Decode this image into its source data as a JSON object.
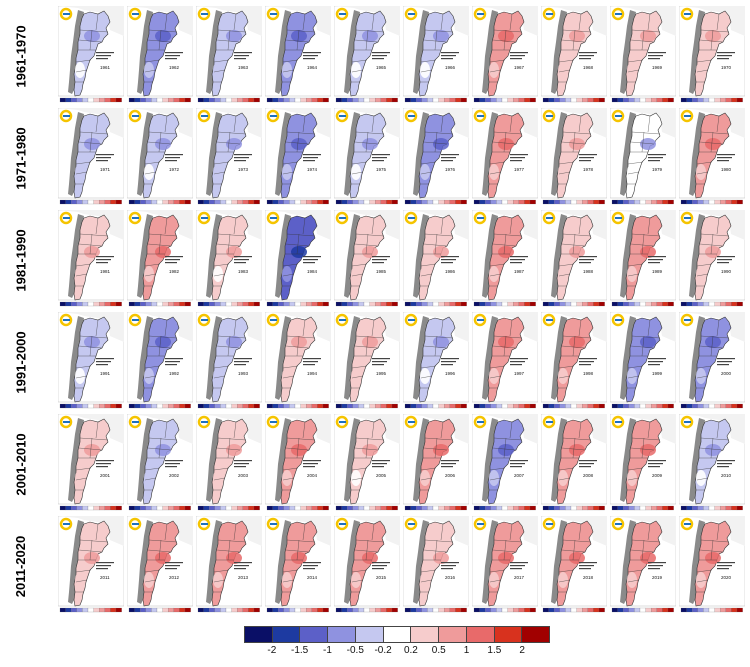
{
  "decades": [
    {
      "label": "1961-1970",
      "years": [
        {
          "year": "1961",
          "anomaly": -0.3
        },
        {
          "year": "1962",
          "anomaly": -0.6
        },
        {
          "year": "1963",
          "anomaly": -0.4
        },
        {
          "year": "1964",
          "anomaly": -0.7
        },
        {
          "year": "1965",
          "anomaly": -0.2
        },
        {
          "year": "1966",
          "anomaly": -0.3
        },
        {
          "year": "1967",
          "anomaly": 0.6
        },
        {
          "year": "1968",
          "anomaly": 0.5
        },
        {
          "year": "1969",
          "anomaly": 0.4
        },
        {
          "year": "1970",
          "anomaly": 0.5
        }
      ]
    },
    {
      "label": "1971-1980",
      "years": [
        {
          "year": "1971",
          "anomaly": -0.4
        },
        {
          "year": "1972",
          "anomaly": -0.3
        },
        {
          "year": "1973",
          "anomaly": -0.4
        },
        {
          "year": "1974",
          "anomaly": -0.5
        },
        {
          "year": "1975",
          "anomaly": -0.3
        },
        {
          "year": "1976",
          "anomaly": -0.8
        },
        {
          "year": "1977",
          "anomaly": 0.6
        },
        {
          "year": "1978",
          "anomaly": 0.5
        },
        {
          "year": "1979",
          "anomaly": -0.1
        },
        {
          "year": "1980",
          "anomaly": 0.7
        }
      ]
    },
    {
      "label": "1981-1990",
      "years": [
        {
          "year": "1981",
          "anomaly": 0.5
        },
        {
          "year": "1982",
          "anomaly": 0.6
        },
        {
          "year": "1983",
          "anomaly": 0.3
        },
        {
          "year": "1984",
          "anomaly": -1.0
        },
        {
          "year": "1985",
          "anomaly": 0.5
        },
        {
          "year": "1986",
          "anomaly": 0.4
        },
        {
          "year": "1987",
          "anomaly": 0.6
        },
        {
          "year": "1988",
          "anomaly": 0.4
        },
        {
          "year": "1989",
          "anomaly": 0.6
        },
        {
          "year": "1990",
          "anomaly": 0.5
        }
      ]
    },
    {
      "label": "1991-2000",
      "years": [
        {
          "year": "1991",
          "anomaly": -0.3
        },
        {
          "year": "1992",
          "anomaly": -0.7
        },
        {
          "year": "1993",
          "anomaly": -0.4
        },
        {
          "year": "1994",
          "anomaly": 0.4
        },
        {
          "year": "1995",
          "anomaly": 0.5
        },
        {
          "year": "1996",
          "anomaly": -0.3
        },
        {
          "year": "1997",
          "anomaly": 0.6
        },
        {
          "year": "1998",
          "anomaly": 0.8
        },
        {
          "year": "1999",
          "anomaly": -0.6
        },
        {
          "year": "2000",
          "anomaly": -0.8
        }
      ]
    },
    {
      "label": "2001-2010",
      "years": [
        {
          "year": "2001",
          "anomaly": 0.4
        },
        {
          "year": "2002",
          "anomaly": -0.4
        },
        {
          "year": "2003",
          "anomaly": 0.5
        },
        {
          "year": "2004",
          "anomaly": 0.7
        },
        {
          "year": "2005",
          "anomaly": 0.3
        },
        {
          "year": "2006",
          "anomaly": 0.6
        },
        {
          "year": "2007",
          "anomaly": -0.6
        },
        {
          "year": "2008",
          "anomaly": 0.7
        },
        {
          "year": "2009",
          "anomaly": 0.6
        },
        {
          "year": "2010",
          "anomaly": -0.3
        }
      ]
    },
    {
      "label": "2011-2020",
      "years": [
        {
          "year": "2011",
          "anomaly": 0.5
        },
        {
          "year": "2012",
          "anomaly": 0.8
        },
        {
          "year": "2013",
          "anomaly": 0.7
        },
        {
          "year": "2014",
          "anomaly": 0.6
        },
        {
          "year": "2015",
          "anomaly": 0.6
        },
        {
          "year": "2016",
          "anomaly": 0.4
        },
        {
          "year": "2017",
          "anomaly": 0.6
        },
        {
          "year": "2018",
          "anomaly": 0.7
        },
        {
          "year": "2019",
          "anomaly": 0.6
        },
        {
          "year": "2020",
          "anomaly": 0.8
        }
      ]
    }
  ],
  "legend": {
    "colors": [
      "#0a0f66",
      "#1d3aa1",
      "#5c60c8",
      "#8f92e0",
      "#c5c8f0",
      "#ffffff",
      "#f6cccc",
      "#ef9b9b",
      "#e86a6a",
      "#d8321e",
      "#a10000"
    ],
    "labels": [
      "-2",
      "-1.5",
      "-1",
      "-0.5",
      "-0.2",
      "0.2",
      "0.5",
      "1",
      "1.5",
      "2"
    ]
  },
  "colors": {
    "land_outside": "#f2f2f2",
    "andes": "#8a8a8a",
    "ocean": "#ffffff",
    "border": "#333333",
    "logo_yellow": "#f5c400",
    "logo_blue": "#1c70c0"
  }
}
